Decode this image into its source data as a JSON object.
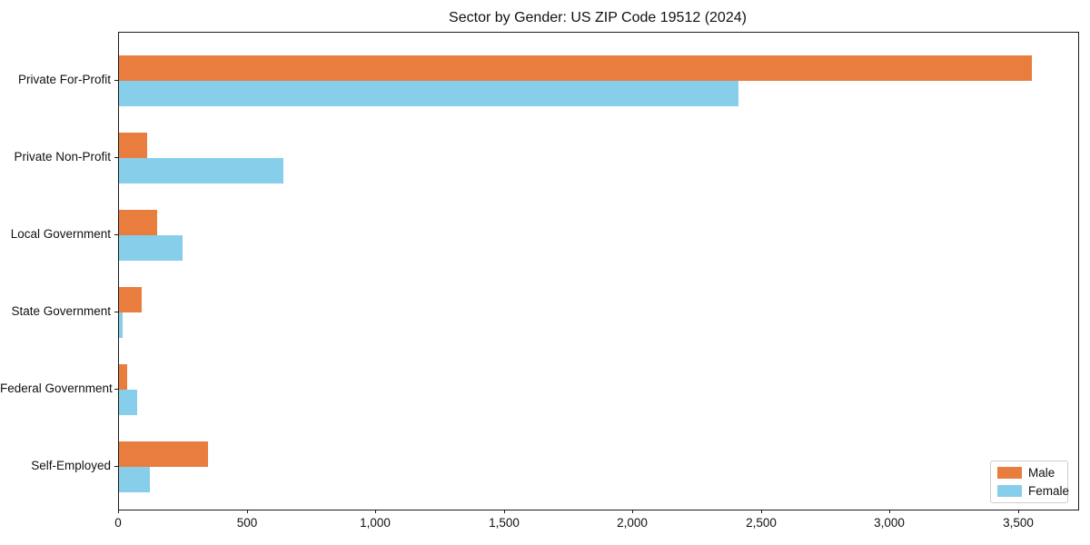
{
  "chart_data": {
    "type": "bar",
    "orientation": "horizontal",
    "title": "Sector by Gender: US ZIP Code 19512 (2024)",
    "xlabel": "",
    "ylabel": "",
    "categories": [
      "Private For-Profit",
      "Private Non-Profit",
      "Local Government",
      "State Government",
      "Federal Government",
      "Self-Employed"
    ],
    "series": [
      {
        "name": "Male",
        "color": "#E87D3E",
        "values": [
          3550,
          110,
          148,
          90,
          33,
          345
        ]
      },
      {
        "name": "Female",
        "color": "#87CEEB",
        "values": [
          2410,
          640,
          248,
          14,
          71,
          121
        ]
      }
    ],
    "xlim": [
      0,
      3730
    ],
    "xticks": [
      0,
      500,
      1000,
      1500,
      2000,
      2500,
      3000,
      3500
    ],
    "xtick_labels": [
      "0",
      "500",
      "1,000",
      "1,500",
      "2,000",
      "2,500",
      "3,000",
      "3,500"
    ],
    "grid": false,
    "legend": {
      "position": "lower right",
      "entries": [
        "Male",
        "Female"
      ]
    }
  }
}
